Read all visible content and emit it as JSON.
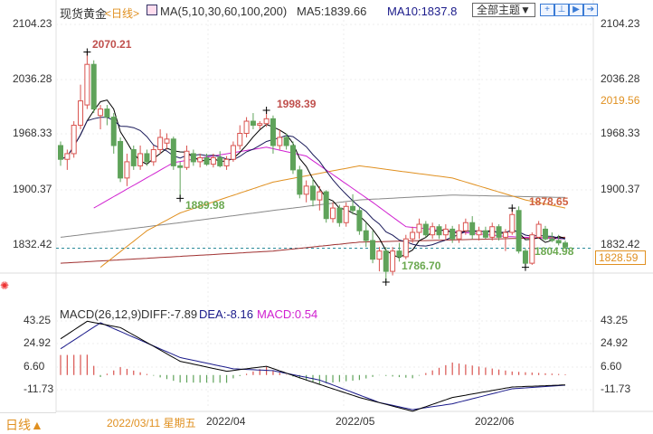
{
  "header": {
    "instrument": "现货黄金",
    "period": "<日线>",
    "ma_label": "MA(5,10,30,60,100,200)",
    "ma5": "MA5:1839.66",
    "ma10": "MA10:1837.8",
    "theme_select": "全部主题▼"
  },
  "price_axis": {
    "left": [
      "2104.23",
      "2036.28",
      "1968.33",
      "1900.37",
      "1832.42"
    ],
    "right": [
      "2104.23",
      "2036.28",
      "1968.33",
      "1900.37",
      "1832.42"
    ],
    "ma_right": "2019.56",
    "current_price": "1828.59"
  },
  "macd": {
    "title": "MACD(26,12,9)",
    "diff": "DIFF:-7.89",
    "dea": "DEA:-8.16",
    "macd": "MACD:0.54",
    "axis_left": [
      "43.25",
      "24.92",
      "6.60",
      "-11.73"
    ],
    "axis_right": [
      "43.25",
      "24.92",
      "6.60",
      "-11.73"
    ]
  },
  "annotations": {
    "high1": "2070.21",
    "high2": "1998.39",
    "low1": "1889.98",
    "low2": "1786.70",
    "ma_mark": "1878.65",
    "low3": "1804.98"
  },
  "footer": {
    "period_button": "日线▲",
    "cursor_date": "2022/03/11 星期五",
    "dates": [
      "2022/04",
      "2022/05",
      "2022/06"
    ]
  },
  "colors": {
    "up": "#d9534f",
    "down": "#5fa35a",
    "ma5": "#000000",
    "ma10": "#1a1a5a",
    "ma30": "#d020d0",
    "ma60": "#e09020",
    "ma100": "#888888",
    "ma200": "#a03030"
  },
  "chart_data": {
    "type": "candlestick",
    "title": "现货黄金 日线",
    "ylim": [
      1786,
      2104.23
    ],
    "candles": [
      [
        1955,
        1960,
        1930,
        1938
      ],
      [
        1938,
        1950,
        1925,
        1945
      ],
      [
        1945,
        1985,
        1940,
        1980
      ],
      [
        1980,
        2030,
        1975,
        2010
      ],
      [
        2005,
        2070.21,
        2000,
        2055
      ],
      [
        2055,
        2060,
        1995,
        2000
      ],
      [
        1992,
        2005,
        1975,
        2000
      ],
      [
        2000,
        2005,
        1980,
        1990
      ],
      [
        1990,
        1995,
        1945,
        1955
      ],
      [
        1960,
        1965,
        1910,
        1915
      ],
      [
        1915,
        1945,
        1905,
        1935
      ],
      [
        1950,
        1955,
        1925,
        1930
      ],
      [
        1930,
        1955,
        1925,
        1945
      ],
      [
        1945,
        1950,
        1930,
        1935
      ],
      [
        1935,
        1955,
        1930,
        1950
      ],
      [
        1950,
        1975,
        1945,
        1965
      ],
      [
        1958,
        1970,
        1950,
        1963
      ],
      [
        1963,
        1966,
        1925,
        1930
      ],
      [
        1930,
        1935,
        1889.98,
        1928
      ],
      [
        1928,
        1955,
        1925,
        1948
      ],
      [
        1945,
        1950,
        1930,
        1935
      ],
      [
        1935,
        1945,
        1928,
        1940
      ],
      [
        1940,
        1945,
        1930,
        1932
      ],
      [
        1932,
        1945,
        1928,
        1940
      ],
      [
        1940,
        1948,
        1928,
        1930
      ],
      [
        1930,
        1942,
        1925,
        1938
      ],
      [
        1938,
        1960,
        1935,
        1955
      ],
      [
        1955,
        1980,
        1950,
        1970
      ],
      [
        1970,
        1990,
        1965,
        1985
      ],
      [
        1985,
        1995,
        1975,
        1980
      ],
      [
        1980,
        1985,
        1975,
        1982
      ],
      [
        1982,
        1998.39,
        1978,
        1988
      ],
      [
        1988,
        1992,
        1945,
        1955
      ],
      [
        1955,
        1975,
        1950,
        1965
      ],
      [
        1965,
        1970,
        1950,
        1955
      ],
      [
        1955,
        1960,
        1920,
        1925
      ],
      [
        1925,
        1930,
        1890,
        1895
      ],
      [
        1895,
        1912,
        1885,
        1905
      ],
      [
        1905,
        1915,
        1880,
        1888
      ],
      [
        1888,
        1905,
        1875,
        1898
      ],
      [
        1898,
        1900,
        1860,
        1865
      ],
      [
        1865,
        1885,
        1860,
        1878
      ],
      [
        1878,
        1882,
        1855,
        1860
      ],
      [
        1860,
        1885,
        1855,
        1880
      ],
      [
        1880,
        1895,
        1870,
        1875
      ],
      [
        1875,
        1880,
        1845,
        1850
      ],
      [
        1850,
        1860,
        1830,
        1838
      ],
      [
        1838,
        1850,
        1810,
        1815
      ],
      [
        1815,
        1830,
        1800,
        1825
      ],
      [
        1825,
        1830,
        1786.7,
        1800
      ],
      [
        1800,
        1830,
        1795,
        1825
      ],
      [
        1825,
        1835,
        1812,
        1818
      ],
      [
        1818,
        1845,
        1815,
        1840
      ],
      [
        1840,
        1855,
        1835,
        1848
      ],
      [
        1848,
        1865,
        1840,
        1858
      ],
      [
        1858,
        1862,
        1842,
        1845
      ],
      [
        1845,
        1860,
        1840,
        1855
      ],
      [
        1855,
        1858,
        1840,
        1845
      ],
      [
        1845,
        1858,
        1838,
        1852
      ],
      [
        1852,
        1856,
        1835,
        1840
      ],
      [
        1840,
        1858,
        1835,
        1850
      ],
      [
        1850,
        1865,
        1845,
        1860
      ],
      [
        1860,
        1868,
        1840,
        1845
      ],
      [
        1845,
        1855,
        1838,
        1850
      ],
      [
        1850,
        1855,
        1840,
        1842
      ],
      [
        1842,
        1860,
        1838,
        1855
      ],
      [
        1855,
        1858,
        1838,
        1842
      ],
      [
        1842,
        1852,
        1825,
        1848
      ],
      [
        1848,
        1878,
        1845,
        1870
      ],
      [
        1875,
        1880,
        1822,
        1825
      ],
      [
        1825,
        1828,
        1804.98,
        1810
      ],
      [
        1810,
        1848,
        1808,
        1845
      ],
      [
        1842,
        1862,
        1840,
        1858
      ],
      [
        1852,
        1856,
        1838,
        1840
      ],
      [
        1840,
        1848,
        1836,
        1838
      ],
      [
        1838,
        1845,
        1832,
        1835
      ],
      [
        1835,
        1838,
        1828,
        1830
      ]
    ],
    "ma_sparse": {
      "ma30": [
        [
          5,
          1878
        ],
        [
          17,
          1934
        ],
        [
          31,
          1953
        ],
        [
          37,
          1942
        ],
        [
          47,
          1885
        ],
        [
          52,
          1855
        ],
        [
          67,
          1843
        ],
        [
          76,
          1840
        ]
      ],
      "ma60": [
        [
          6,
          1805
        ],
        [
          13,
          1850
        ],
        [
          18,
          1872
        ],
        [
          32,
          1910
        ],
        [
          45,
          1930
        ],
        [
          59,
          1915
        ],
        [
          70,
          1888
        ],
        [
          76,
          1878
        ]
      ],
      "ma100": [
        [
          0,
          1842
        ],
        [
          18,
          1860
        ],
        [
          32,
          1875
        ],
        [
          45,
          1888
        ],
        [
          59,
          1894
        ],
        [
          76,
          1891
        ]
      ],
      "ma200": [
        [
          0,
          1810
        ],
        [
          32,
          1825
        ],
        [
          45,
          1836
        ],
        [
          76,
          1842
        ]
      ]
    },
    "current_price": 1828.59,
    "macd_ylim": [
      -30,
      45
    ],
    "macd_diff": [
      [
        0,
        29
      ],
      [
        4,
        43
      ],
      [
        9,
        38
      ],
      [
        18,
        11
      ],
      [
        25,
        3
      ],
      [
        31,
        7
      ],
      [
        37,
        -4
      ],
      [
        45,
        -18
      ],
      [
        53,
        -29
      ],
      [
        59,
        -18
      ],
      [
        68,
        -9.6
      ],
      [
        76,
        -7.89
      ]
    ],
    "macd_dea": [
      [
        0,
        21
      ],
      [
        6,
        41.8
      ],
      [
        18,
        14
      ],
      [
        26,
        5
      ],
      [
        32,
        3.5
      ],
      [
        39,
        -4
      ],
      [
        48,
        -22
      ],
      [
        53,
        -27.7
      ],
      [
        59,
        -23
      ],
      [
        68,
        -11
      ],
      [
        76,
        -8.16
      ]
    ]
  }
}
